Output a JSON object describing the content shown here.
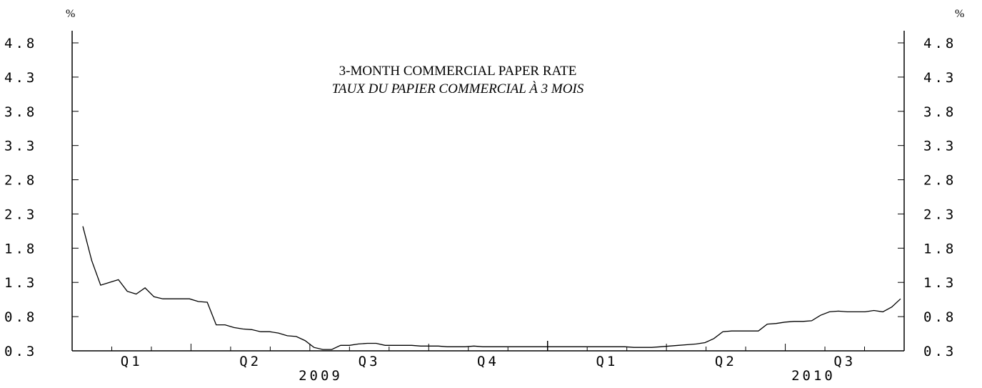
{
  "chart_data": {
    "type": "line",
    "title": "3-MONTH COMMERCIAL PAPER RATE",
    "subtitle": "TAUX DU PAPIER COMMERCIAL À 3 MOIS",
    "left_unit": "%",
    "right_unit": "%",
    "ylim": [
      0.3,
      4.8
    ],
    "y_ticks": [
      "4.8",
      "4.3",
      "3.8",
      "3.3",
      "2.8",
      "2.3",
      "1.8",
      "1.3",
      "0.8",
      "0.3"
    ],
    "quarter_labels": [
      "Q1",
      "Q2",
      "Q3",
      "Q4",
      "Q1",
      "Q2",
      "Q3"
    ],
    "year_labels": [
      "2009",
      "2010"
    ],
    "series": [
      {
        "values": [
          2.12,
          1.62,
          1.26,
          1.3,
          1.34,
          1.17,
          1.13,
          1.22,
          1.09,
          1.06,
          1.06,
          1.06,
          1.06,
          1.02,
          1.01,
          0.68,
          0.68,
          0.64,
          0.62,
          0.61,
          0.58,
          0.58,
          0.56,
          0.52,
          0.51,
          0.45,
          0.35,
          0.32,
          0.32,
          0.38,
          0.38,
          0.4,
          0.41,
          0.41,
          0.38,
          0.38,
          0.38,
          0.38,
          0.37,
          0.37,
          0.37,
          0.36,
          0.36,
          0.36,
          0.37,
          0.36,
          0.36,
          0.36,
          0.36,
          0.36,
          0.36,
          0.36,
          0.36,
          0.36,
          0.36,
          0.36,
          0.36,
          0.36,
          0.36,
          0.36,
          0.36,
          0.36,
          0.35,
          0.35,
          0.35,
          0.36,
          0.37,
          0.38,
          0.39,
          0.4,
          0.42,
          0.48,
          0.58,
          0.59,
          0.59,
          0.59,
          0.59,
          0.69,
          0.7,
          0.72,
          0.73,
          0.73,
          0.74,
          0.82,
          0.87,
          0.88,
          0.87,
          0.87,
          0.87,
          0.89,
          0.87,
          0.94,
          1.06
        ]
      }
    ],
    "color": "#000000"
  }
}
